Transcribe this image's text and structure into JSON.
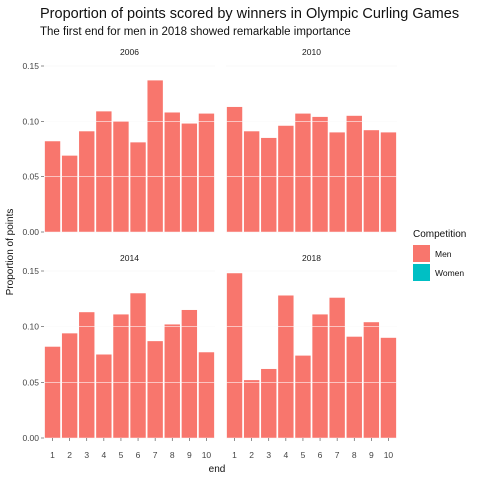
{
  "chart_data": {
    "type": "bar",
    "title": "Proportion of points scored by winners in Olympic Curling Games",
    "subtitle": "The first end for men in 2018 showed remarkable importance",
    "xlabel": "end",
    "ylabel": "Proportion of points",
    "categories": [
      "1",
      "2",
      "3",
      "4",
      "5",
      "6",
      "7",
      "8",
      "9",
      "10"
    ],
    "ylim": [
      0,
      0.15
    ],
    "yticks": [
      0.0,
      0.05,
      0.1,
      0.15
    ],
    "ytick_labels": [
      "0.00",
      "0.05",
      "0.10",
      "0.15"
    ],
    "grid": false,
    "legend": {
      "title": "Competition",
      "placement": "right",
      "entries": [
        {
          "label": "Men",
          "color": "#F8766D"
        },
        {
          "label": "Women",
          "color": "#00BFC4"
        }
      ]
    },
    "panels": [
      {
        "label": "2006",
        "series": [
          {
            "name": "Men",
            "values": [
              0.082,
              0.069,
              0.091,
              0.109,
              0.1,
              0.081,
              0.137,
              0.108,
              0.098,
              0.107
            ]
          }
        ]
      },
      {
        "label": "2010",
        "series": [
          {
            "name": "Men",
            "values": [
              0.113,
              0.091,
              0.085,
              0.096,
              0.107,
              0.104,
              0.09,
              0.105,
              0.092,
              0.09
            ]
          }
        ]
      },
      {
        "label": "2014",
        "series": [
          {
            "name": "Men",
            "values": [
              0.082,
              0.094,
              0.113,
              0.075,
              0.111,
              0.13,
              0.087,
              0.102,
              0.115,
              0.077
            ]
          }
        ]
      },
      {
        "label": "2018",
        "series": [
          {
            "name": "Men",
            "values": [
              0.148,
              0.052,
              0.062,
              0.128,
              0.074,
              0.111,
              0.126,
              0.091,
              0.104,
              0.09
            ]
          }
        ]
      }
    ]
  }
}
